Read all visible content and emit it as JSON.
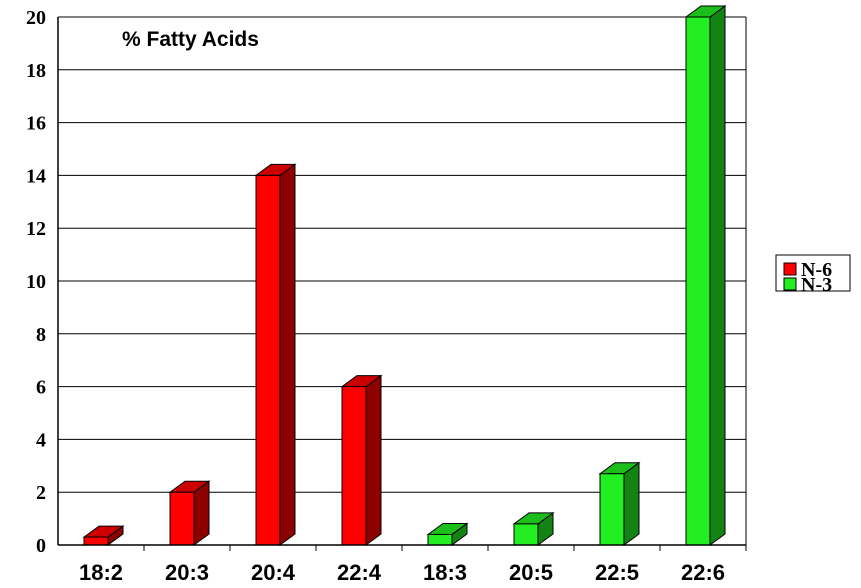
{
  "chart_data": {
    "type": "bar",
    "title": "% Fatty Acids",
    "categories": [
      "18:2",
      "20:3",
      "20:4",
      "22:4",
      "18:3",
      "20:5",
      "22:5",
      "22:6"
    ],
    "series": [
      {
        "name": "N-6",
        "color": "#ff0000",
        "values": [
          0.3,
          2.0,
          14.0,
          6.0,
          null,
          null,
          null,
          null
        ]
      },
      {
        "name": "N-3",
        "color": "#22ee22",
        "values": [
          null,
          null,
          null,
          null,
          0.4,
          0.8,
          2.7,
          20.0
        ]
      }
    ],
    "yticks": [
      0,
      2,
      4,
      6,
      8,
      10,
      12,
      14,
      16,
      18,
      20
    ],
    "ylim": [
      0,
      20
    ],
    "grid": true,
    "legend": "right"
  }
}
